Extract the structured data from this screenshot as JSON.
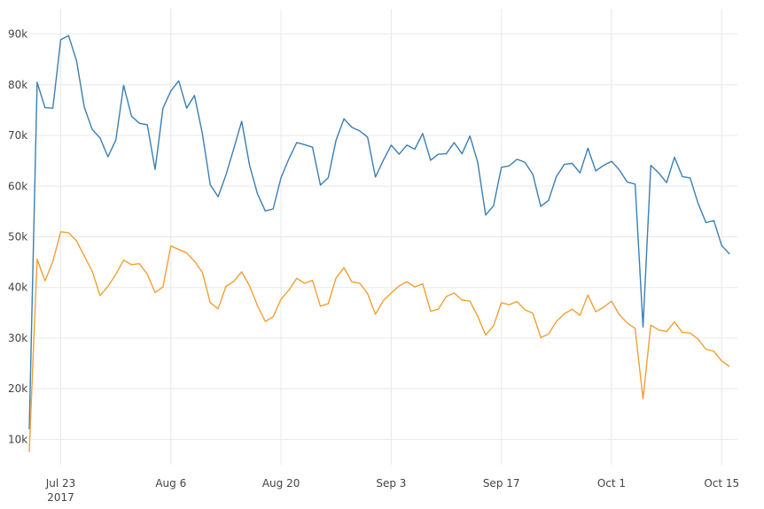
{
  "chart_data": {
    "type": "line",
    "title": "",
    "xlabel": "",
    "ylabel": "",
    "grid": true,
    "legend": "none",
    "x_start": "2017-07-19",
    "x_end": "2017-10-17",
    "ylim": [
      5000,
      95000
    ],
    "y_ticks": [
      10000,
      20000,
      30000,
      40000,
      50000,
      60000,
      70000,
      80000,
      90000
    ],
    "y_tick_labels": [
      "10k",
      "20k",
      "30k",
      "40k",
      "50k",
      "60k",
      "70k",
      "80k",
      "90k"
    ],
    "x_ticks": [
      "2017-07-23",
      "2017-08-06",
      "2017-08-20",
      "2017-09-03",
      "2017-09-17",
      "2017-10-01",
      "2017-10-15"
    ],
    "x_tick_labels": [
      "Jul 23",
      "Aug 6",
      "Aug 20",
      "Sep 3",
      "Sep 17",
      "Oct 1",
      "Oct 15"
    ],
    "x_tick_sublabels": [
      "2017",
      "",
      "",
      "",
      "",
      "",
      ""
    ],
    "series": [
      {
        "color": "#3a7fb5",
        "values": [
          12000,
          80500,
          75500,
          75400,
          88900,
          89700,
          84800,
          75600,
          71200,
          69500,
          65800,
          69100,
          79900,
          73800,
          72400,
          72100,
          63300,
          75400,
          78800,
          80800,
          75400,
          77900,
          70400,
          60300,
          57900,
          62200,
          67400,
          72800,
          64100,
          58500,
          55100,
          55500,
          61700,
          65400,
          68600,
          68200,
          67700,
          60200,
          61700,
          69100,
          73300,
          71600,
          70900,
          69700,
          61800,
          65100,
          68100,
          66300,
          68100,
          67300,
          70400,
          65100,
          66300,
          66400,
          68600,
          66400,
          69900,
          64700,
          54300,
          56100,
          63700,
          64000,
          65300,
          64700,
          62300,
          56000,
          57200,
          61900,
          64300,
          64500,
          62600,
          67500,
          63000,
          64100,
          64900,
          63200,
          60800,
          60400,
          32200,
          64100,
          62600,
          60700,
          65700,
          61900,
          61600,
          56600,
          52800,
          53200,
          48300,
          46600
        ]
      },
      {
        "color": "#f0a035",
        "values": [
          7500,
          45600,
          41300,
          45100,
          51000,
          50800,
          49200,
          46200,
          43200,
          38400,
          40200,
          42600,
          45400,
          44500,
          44700,
          42600,
          39000,
          40100,
          48200,
          47500,
          46800,
          45200,
          43000,
          37000,
          35800,
          40200,
          41200,
          43100,
          40300,
          36400,
          33300,
          34200,
          37700,
          39500,
          41800,
          40800,
          41400,
          36300,
          36800,
          41900,
          43900,
          41100,
          40800,
          38800,
          34700,
          37400,
          38900,
          40300,
          41100,
          40100,
          40700,
          35300,
          35700,
          38200,
          38900,
          37500,
          37300,
          34300,
          30600,
          32400,
          37000,
          36600,
          37200,
          35600,
          34900,
          30100,
          30800,
          33300,
          34800,
          35700,
          34500,
          38500,
          35200,
          36100,
          37300,
          34600,
          33000,
          31900,
          18000,
          32600,
          31600,
          31300,
          33200,
          31100,
          31000,
          29800,
          27800,
          27400,
          25500,
          24400
        ]
      }
    ]
  }
}
